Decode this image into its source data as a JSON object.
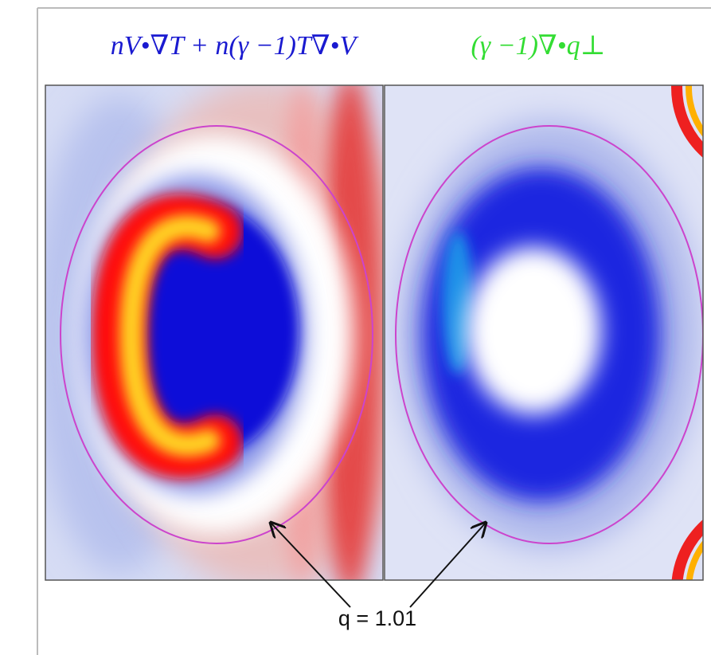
{
  "titles": {
    "left": "nV•∇T + n(γ −1)T∇•V",
    "right": "(γ −1)∇•q⊥"
  },
  "annotation": "q = 1.01"
}
